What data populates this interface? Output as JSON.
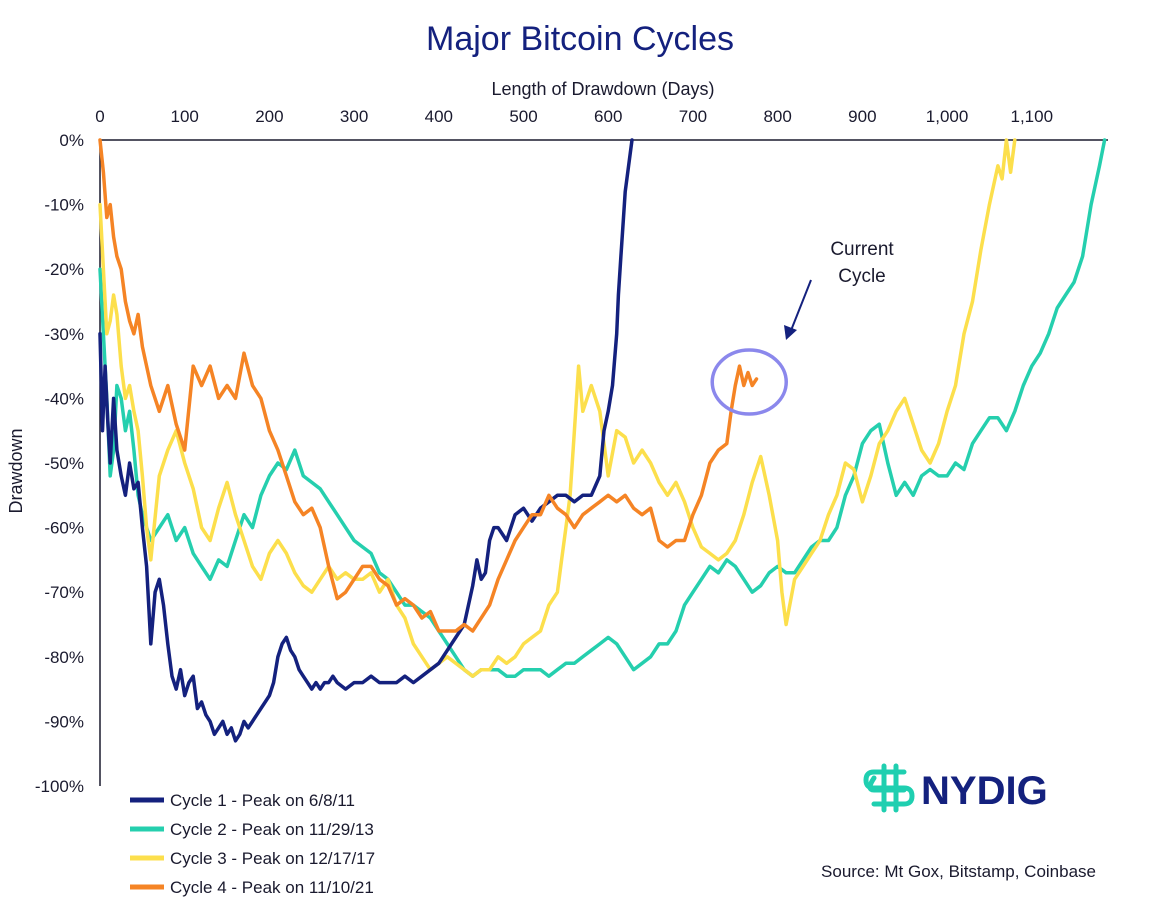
{
  "brand": {
    "name": "NYDIG",
    "logo_color": "#1fcfb0",
    "text_color": "#14217e"
  },
  "source": "Source: Mt Gox, Bitstamp, Coinbase",
  "chart_data": {
    "type": "line",
    "title": "Major Bitcoin Cycles",
    "xlabel": "Length of Drawdown (Days)",
    "ylabel": "Drawdown",
    "x_axis_position": "top",
    "xlim": [
      0,
      1190
    ],
    "ylim": [
      -100,
      0
    ],
    "x_ticks": [
      0,
      100,
      200,
      300,
      400,
      500,
      600,
      700,
      800,
      900,
      1000,
      1100
    ],
    "x_tick_labels": [
      "0",
      "100",
      "200",
      "300",
      "400",
      "500",
      "600",
      "700",
      "800",
      "900",
      "1,000",
      "1,100"
    ],
    "y_ticks": [
      0,
      -10,
      -20,
      -30,
      -40,
      -50,
      -60,
      -70,
      -80,
      -90,
      -100
    ],
    "y_tick_labels": [
      "0%",
      "-10%",
      "-20%",
      "-30%",
      "-40%",
      "-50%",
      "-60%",
      "-70%",
      "-80%",
      "-90%",
      "-100%"
    ],
    "grid": false,
    "legend_position": "bottom-left",
    "series": [
      {
        "name": "Cycle 1 - Peak on 6/8/11",
        "color": "#14217e",
        "x": [
          0,
          3,
          6,
          9,
          12,
          16,
          20,
          25,
          30,
          35,
          40,
          45,
          50,
          55,
          60,
          65,
          70,
          75,
          80,
          85,
          90,
          95,
          100,
          105,
          110,
          115,
          120,
          125,
          130,
          135,
          140,
          145,
          150,
          155,
          160,
          165,
          170,
          175,
          180,
          185,
          190,
          195,
          200,
          205,
          210,
          215,
          220,
          225,
          230,
          235,
          240,
          245,
          250,
          255,
          260,
          265,
          270,
          275,
          280,
          290,
          300,
          310,
          320,
          330,
          340,
          350,
          360,
          370,
          380,
          390,
          400,
          410,
          420,
          430,
          440,
          445,
          450,
          455,
          460,
          465,
          470,
          475,
          480,
          490,
          500,
          510,
          520,
          530,
          540,
          550,
          560,
          570,
          580,
          590,
          595,
          600,
          605,
          610,
          612,
          615,
          618,
          620,
          622,
          624,
          626,
          628
        ],
        "y": [
          -30,
          -45,
          -35,
          -43,
          -50,
          -40,
          -48,
          -52,
          -55,
          -50,
          -54,
          -53,
          -60,
          -66,
          -78,
          -70,
          -68,
          -72,
          -78,
          -83,
          -85,
          -82,
          -86,
          -84,
          -83,
          -88,
          -87,
          -89,
          -90,
          -92,
          -91,
          -90,
          -92,
          -91,
          -93,
          -92,
          -90,
          -91,
          -90,
          -89,
          -88,
          -87,
          -86,
          -84,
          -80,
          -78,
          -77,
          -79,
          -80,
          -82,
          -83,
          -84,
          -85,
          -84,
          -85,
          -84,
          -84,
          -83,
          -84,
          -85,
          -84,
          -84,
          -83,
          -84,
          -84,
          -84,
          -83,
          -84,
          -83,
          -82,
          -81,
          -79,
          -77,
          -75,
          -69,
          -65,
          -68,
          -67,
          -62,
          -60,
          -60,
          -61,
          -62,
          -58,
          -57,
          -59,
          -57,
          -56,
          -55,
          -55,
          -56,
          -55,
          -55,
          -52,
          -45,
          -42,
          -38,
          -30,
          -24,
          -18,
          -12,
          -8,
          -6,
          -4,
          -2,
          0
        ]
      },
      {
        "name": "Cycle 2 - Peak on 11/29/13",
        "color": "#25cfae",
        "x": [
          0,
          4,
          8,
          12,
          16,
          20,
          25,
          30,
          35,
          40,
          45,
          50,
          55,
          60,
          70,
          80,
          90,
          100,
          110,
          120,
          130,
          140,
          150,
          160,
          170,
          180,
          190,
          200,
          210,
          220,
          230,
          240,
          250,
          260,
          270,
          280,
          290,
          300,
          310,
          320,
          330,
          340,
          350,
          360,
          370,
          380,
          390,
          400,
          410,
          420,
          430,
          440,
          450,
          460,
          470,
          480,
          490,
          500,
          510,
          520,
          530,
          540,
          550,
          560,
          570,
          580,
          590,
          600,
          610,
          620,
          630,
          640,
          650,
          660,
          670,
          680,
          690,
          700,
          710,
          720,
          730,
          740,
          750,
          760,
          770,
          780,
          790,
          800,
          810,
          820,
          830,
          840,
          850,
          860,
          870,
          880,
          890,
          900,
          910,
          920,
          930,
          940,
          950,
          960,
          970,
          980,
          990,
          1000,
          1010,
          1020,
          1030,
          1040,
          1050,
          1060,
          1070,
          1080,
          1090,
          1100,
          1110,
          1120,
          1130,
          1140,
          1150,
          1160,
          1170,
          1180,
          1186
        ],
        "y": [
          -20,
          -30,
          -40,
          -52,
          -48,
          -38,
          -40,
          -45,
          -42,
          -48,
          -55,
          -58,
          -60,
          -62,
          -60,
          -58,
          -62,
          -60,
          -64,
          -66,
          -68,
          -65,
          -66,
          -62,
          -58,
          -60,
          -55,
          -52,
          -50,
          -51,
          -48,
          -52,
          -53,
          -54,
          -56,
          -58,
          -60,
          -62,
          -63,
          -64,
          -67,
          -68,
          -70,
          -72,
          -72,
          -73,
          -74,
          -76,
          -78,
          -80,
          -82,
          -83,
          -82,
          -82,
          -82,
          -83,
          -83,
          -82,
          -82,
          -82,
          -83,
          -82,
          -81,
          -81,
          -80,
          -79,
          -78,
          -77,
          -78,
          -80,
          -82,
          -81,
          -80,
          -78,
          -78,
          -76,
          -72,
          -70,
          -68,
          -66,
          -67,
          -65,
          -66,
          -68,
          -70,
          -69,
          -67,
          -66,
          -67,
          -67,
          -65,
          -63,
          -62,
          -62,
          -60,
          -55,
          -52,
          -47,
          -45,
          -44,
          -50,
          -55,
          -53,
          -55,
          -52,
          -51,
          -52,
          -52,
          -50,
          -51,
          -47,
          -45,
          -43,
          -43,
          -45,
          -42,
          -38,
          -35,
          -33,
          -30,
          -26,
          -24,
          -22,
          -18,
          -10,
          -4,
          0
        ]
      },
      {
        "name": "Cycle 3 - Peak on 12/17/17",
        "color": "#fcdf4c",
        "x": [
          0,
          4,
          8,
          12,
          16,
          20,
          25,
          30,
          35,
          40,
          45,
          50,
          55,
          60,
          70,
          80,
          90,
          100,
          110,
          120,
          130,
          140,
          150,
          160,
          170,
          180,
          190,
          200,
          210,
          220,
          230,
          240,
          250,
          260,
          270,
          280,
          290,
          300,
          310,
          320,
          330,
          340,
          350,
          360,
          370,
          380,
          390,
          400,
          410,
          420,
          430,
          440,
          450,
          460,
          470,
          480,
          490,
          500,
          510,
          520,
          530,
          540,
          545,
          550,
          555,
          560,
          565,
          570,
          580,
          590,
          600,
          610,
          620,
          630,
          640,
          650,
          660,
          670,
          680,
          690,
          700,
          710,
          720,
          730,
          740,
          750,
          760,
          770,
          780,
          790,
          800,
          805,
          810,
          820,
          830,
          840,
          850,
          860,
          870,
          880,
          890,
          900,
          910,
          920,
          930,
          940,
          950,
          960,
          970,
          980,
          990,
          1000,
          1010,
          1020,
          1030,
          1040,
          1050,
          1060,
          1065,
          1070,
          1075,
          1080
        ],
        "y": [
          -10,
          -20,
          -30,
          -28,
          -24,
          -27,
          -35,
          -40,
          -38,
          -42,
          -45,
          -52,
          -60,
          -65,
          -52,
          -48,
          -45,
          -50,
          -54,
          -60,
          -62,
          -57,
          -53,
          -58,
          -62,
          -66,
          -68,
          -64,
          -62,
          -64,
          -67,
          -69,
          -70,
          -68,
          -66,
          -68,
          -67,
          -68,
          -68,
          -67,
          -70,
          -68,
          -72,
          -74,
          -78,
          -80,
          -82,
          -81,
          -80,
          -81,
          -82,
          -83,
          -82,
          -82,
          -80,
          -81,
          -80,
          -78,
          -77,
          -76,
          -72,
          -70,
          -65,
          -60,
          -55,
          -45,
          -35,
          -42,
          -38,
          -42,
          -52,
          -45,
          -46,
          -50,
          -48,
          -50,
          -53,
          -55,
          -53,
          -56,
          -60,
          -63,
          -64,
          -65,
          -64,
          -62,
          -58,
          -53,
          -49,
          -55,
          -62,
          -70,
          -75,
          -68,
          -66,
          -64,
          -62,
          -58,
          -55,
          -50,
          -51,
          -56,
          -52,
          -47,
          -45,
          -42,
          -40,
          -44,
          -48,
          -50,
          -47,
          -42,
          -38,
          -30,
          -25,
          -17,
          -10,
          -4,
          -6,
          0,
          -5,
          0
        ]
      },
      {
        "name": "Cycle 4 - Peak on 11/10/21",
        "color": "#f58425",
        "x": [
          0,
          4,
          8,
          12,
          16,
          20,
          25,
          30,
          35,
          40,
          45,
          50,
          55,
          60,
          70,
          80,
          90,
          100,
          110,
          120,
          130,
          140,
          150,
          160,
          170,
          180,
          190,
          200,
          210,
          220,
          230,
          240,
          250,
          260,
          270,
          280,
          290,
          300,
          310,
          320,
          330,
          340,
          350,
          360,
          370,
          380,
          390,
          400,
          410,
          420,
          430,
          440,
          450,
          460,
          470,
          480,
          490,
          500,
          510,
          520,
          530,
          540,
          550,
          560,
          570,
          580,
          590,
          600,
          610,
          620,
          630,
          640,
          650,
          660,
          670,
          680,
          690,
          700,
          710,
          720,
          730,
          740,
          745,
          750,
          755,
          760,
          765,
          770,
          775
        ],
        "y": [
          0,
          -5,
          -12,
          -10,
          -15,
          -18,
          -20,
          -25,
          -28,
          -30,
          -27,
          -32,
          -35,
          -38,
          -42,
          -38,
          -44,
          -48,
          -35,
          -38,
          -35,
          -40,
          -38,
          -40,
          -33,
          -38,
          -40,
          -45,
          -48,
          -52,
          -56,
          -58,
          -57,
          -60,
          -66,
          -71,
          -70,
          -68,
          -66,
          -66,
          -68,
          -69,
          -72,
          -71,
          -72,
          -74,
          -73,
          -76,
          -76,
          -76,
          -75,
          -76,
          -74,
          -72,
          -68,
          -65,
          -62,
          -60,
          -58,
          -58,
          -55,
          -57,
          -58,
          -60,
          -58,
          -57,
          -56,
          -55,
          -56,
          -55,
          -57,
          -58,
          -57,
          -62,
          -63,
          -62,
          -62,
          -58,
          -55,
          -50,
          -48,
          -47,
          -42,
          -38,
          -35,
          -38,
          -36,
          -38,
          -37
        ]
      }
    ],
    "annotations": [
      {
        "text_lines": [
          "Current",
          "Cycle"
        ],
        "target_x": 770,
        "target_y": -37,
        "circle_color": "#8b88ec",
        "arrow_color": "#14217e"
      }
    ]
  }
}
